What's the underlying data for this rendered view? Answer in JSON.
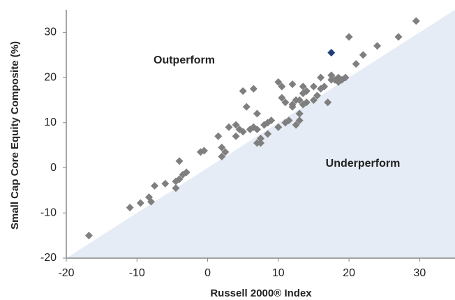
{
  "chart_data": {
    "type": "scatter",
    "x_label": "Russell 2000® Index",
    "y_label": "Small Cap Core Equity Composite (%)",
    "annotations": [
      "Outperform",
      "Underperform"
    ],
    "xlim": [
      -20,
      35
    ],
    "ylim": [
      -20,
      35
    ],
    "xticks": [
      -20,
      -10,
      0,
      10,
      20,
      30
    ],
    "yticks": [
      -20,
      -10,
      0,
      10,
      20,
      30
    ],
    "shade_color": "#e6ecf5",
    "series": [
      {
        "color": "#7f7f7f",
        "x": [
          -16.8,
          -11,
          -9.5,
          -8.3,
          -8,
          -7.5,
          -6,
          -4.5,
          -4.5,
          -4,
          -4,
          -3.5,
          -3,
          -1,
          -0.5,
          1.5,
          2,
          2,
          2.5,
          3,
          4,
          4,
          4.5,
          5,
          5,
          5.5,
          6,
          6.5,
          6.5,
          7,
          7,
          7,
          7.5,
          7.5,
          8,
          8.5,
          8.5,
          9,
          10,
          10,
          10.5,
          10.5,
          11,
          11,
          11.5,
          12,
          12,
          12,
          12.5,
          12.5,
          13,
          13,
          13.5,
          13.5,
          13.5,
          14,
          14,
          15,
          15,
          15.5,
          16,
          16,
          16.5,
          17,
          17.5,
          17.5,
          18,
          18.5,
          18.5,
          19,
          19.5,
          20,
          21,
          22,
          24,
          27,
          29.5,
          13,
          13
        ],
        "values": [
          -15,
          -8.8,
          -7.8,
          -6.5,
          -7.5,
          -4,
          -3.5,
          -4.5,
          -3,
          -2.5,
          1.5,
          -1.5,
          -1,
          3.5,
          3.8,
          7,
          2.5,
          4.5,
          3.5,
          9,
          7,
          9.5,
          8.5,
          8,
          17,
          13.5,
          8.5,
          9,
          17.5,
          12,
          8.5,
          5.5,
          6.5,
          5.5,
          9.5,
          10,
          7.5,
          10.5,
          19,
          9,
          15.5,
          18,
          14.5,
          10,
          10.5,
          18.5,
          14,
          13.5,
          15,
          9.5,
          12,
          15,
          14,
          16.5,
          18,
          17,
          14.5,
          15,
          18,
          16,
          20,
          17.5,
          18,
          14.5,
          19.5,
          20.5,
          19.5,
          20,
          19,
          19.5,
          20,
          29,
          23,
          25,
          27,
          29,
          32.5,
          10.5,
          12
        ]
      },
      {
        "color": "#1f3f7a",
        "x": [
          17.5
        ],
        "values": [
          25.5
        ]
      }
    ]
  }
}
